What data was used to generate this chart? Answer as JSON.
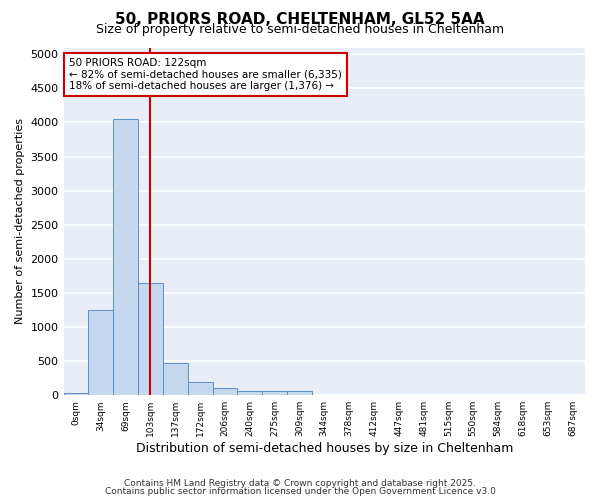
{
  "title_line1": "50, PRIORS ROAD, CHELTENHAM, GL52 5AA",
  "title_line2": "Size of property relative to semi-detached houses in Cheltenham",
  "xlabel": "Distribution of semi-detached houses by size in Cheltenham",
  "ylabel": "Number of semi-detached properties",
  "bar_values": [
    30,
    1250,
    4050,
    1650,
    475,
    200,
    105,
    60,
    55,
    55,
    0,
    0,
    0,
    0,
    0,
    0,
    0,
    0,
    0,
    0,
    0
  ],
  "bin_labels": [
    "0sqm",
    "34sqm",
    "69sqm",
    "103sqm",
    "137sqm",
    "172sqm",
    "206sqm",
    "240sqm",
    "275sqm",
    "309sqm",
    "344sqm",
    "378sqm",
    "412sqm",
    "447sqm",
    "481sqm",
    "515sqm",
    "550sqm",
    "584sqm",
    "618sqm",
    "653sqm",
    "687sqm"
  ],
  "bar_color": "#c5d8f0",
  "bar_edge_color": "#5b8fc9",
  "plot_bg_color": "#e8eef8",
  "fig_bg_color": "#ffffff",
  "grid_color": "#ffffff",
  "red_line_x": 3.0,
  "annotation_line1": "50 PRIORS ROAD: 122sqm",
  "annotation_line2": "← 82% of semi-detached houses are smaller (6,335)",
  "annotation_line3": "18% of semi-detached houses are larger (1,376) →",
  "annotation_box_color": "#ffffff",
  "annotation_box_edge": "#cc0000",
  "ylim": [
    0,
    5100
  ],
  "yticks": [
    0,
    500,
    1000,
    1500,
    2000,
    2500,
    3000,
    3500,
    4000,
    4500,
    5000
  ],
  "ylabel_fontsize": 8,
  "xlabel_fontsize": 9,
  "title1_fontsize": 11,
  "title2_fontsize": 9,
  "footer_line1": "Contains HM Land Registry data © Crown copyright and database right 2025.",
  "footer_line2": "Contains public sector information licensed under the Open Government Licence v3.0"
}
